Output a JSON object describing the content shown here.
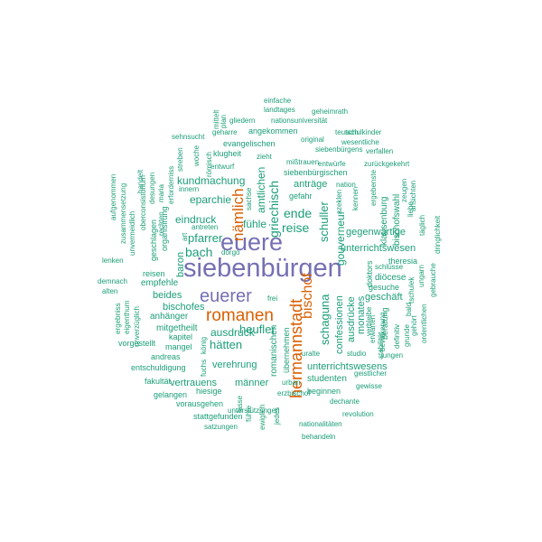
{
  "colors": {
    "teal": "#1b9e77",
    "orange": "#d95f02",
    "purple": "#7570b3",
    "background": "#ffffff"
  },
  "words": [
    "siebenbürgen",
    "euere",
    "euerer",
    "romanen",
    "hermannstadt",
    "nämlich",
    "bischof",
    "schaguna",
    "griechisch",
    "reise",
    "ende",
    "schuller",
    "gouverneur",
    "confessionen",
    "ausdrücke",
    "monates",
    "bach",
    "pfarrer",
    "eindruck",
    "eparchie",
    "kundmachung",
    "amtlichen",
    "anträge",
    "gegenwärtige",
    "unterrichtswesen",
    "unterrichtswesens",
    "ausdruck",
    "hätten",
    "heufler",
    "verehrung",
    "vertrauens",
    "männer",
    "romanischen",
    "übernehmen",
    "bischofes",
    "beides",
    "anhänger",
    "mitgetheilt",
    "kapitel",
    "mangel",
    "andreas",
    "entschuldigung",
    "fakultät",
    "gelangen",
    "hiesige",
    "vorausgehen",
    "stattgefunden",
    "satzungen",
    "unterstützungen",
    "behandeln",
    "nationalitäten",
    "revolution",
    "dechante",
    "beginnen",
    "studenten",
    "gewisse",
    "jungen",
    "geistlicher",
    "studio",
    "beratung",
    "geschäft",
    "gesuche",
    "diöcese",
    "schlüsse",
    "theresia",
    "doktors",
    "bischofswahl",
    "klausenburg",
    "ergebenste",
    "zurückgekehrt",
    "verfallen",
    "wesentliche",
    "schulkinder",
    "teutsch",
    "geheimrath",
    "nationsuniversität",
    "original",
    "landtages",
    "einfache",
    "angekommen",
    "evangelischen",
    "klugheit",
    "gliedern",
    "geharre",
    "sehnsucht",
    "woche",
    "streben",
    "entwurf",
    "innern",
    "siebenbürgischen",
    "mißtrauen",
    "entwürfe",
    "siebenbürgens",
    "gefahr",
    "nation",
    "kennen",
    "szeklen",
    "liebe",
    "dringlichkeit",
    "täglich",
    "ansichten",
    "zeugen",
    "gebrauche",
    "ungarn",
    "verbleibe",
    "erwarten",
    "stabilität",
    "bevölkerung",
    "ordentlichen",
    "tschulek",
    "grunde",
    "gehört",
    "bald",
    "definitiv",
    "uralte",
    "erzbischof",
    "urban",
    "jedes",
    "fasse",
    "ewiglich",
    "fuchs",
    "führe",
    "lenken",
    "demnach",
    "alten",
    "ergebniss",
    "eigenthum",
    "unverzüglich",
    "vorgestellt",
    "empfehle",
    "reisen",
    "baron",
    "dorgo",
    "antreten",
    "fühle",
    "sachse",
    "aufgenommen",
    "zusammensetzung",
    "unvermeidlich",
    "oberconsistorium",
    "handelt",
    "maria",
    "geschlagen",
    "organisirung",
    "erforderniss",
    "desungen",
    "rechten",
    "römisch",
    "art",
    "könig",
    "frei",
    "zieht",
    "mittelt",
    "plan"
  ]
}
